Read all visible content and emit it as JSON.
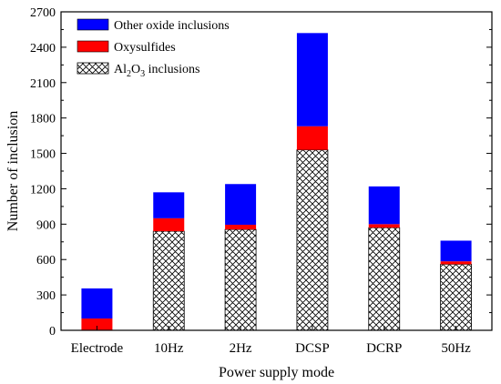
{
  "chart_data": {
    "type": "bar",
    "stacked": true,
    "categories": [
      "Electrode",
      "10Hz",
      "2Hz",
      "DCSP",
      "DCRP",
      "50Hz"
    ],
    "series": [
      {
        "name": "Al2O3 inclusions",
        "values": [
          0,
          840,
          855,
          1530,
          870,
          560
        ],
        "color": "#ffffff",
        "pattern": "crosshatch"
      },
      {
        "name": "Oxysulfides",
        "values": [
          100,
          110,
          40,
          200,
          30,
          25
        ],
        "color": "#ff0000"
      },
      {
        "name": "Other oxide inclusions",
        "values": [
          255,
          220,
          345,
          790,
          320,
          175
        ],
        "color": "#0000ff"
      }
    ],
    "legend_order": [
      "Other oxide inclusions",
      "Oxysulfides",
      "Al2O3 inclusions"
    ],
    "legend_labels": {
      "other": "Other oxide inclusions",
      "oxy": "Oxysulfides",
      "al_pre": "Al",
      "al_sub1": "2",
      "al_mid": "O",
      "al_sub2": "3",
      "al_post": " inclusions"
    },
    "xlabel": "Power supply mode",
    "ylabel": "Number of inclusion",
    "ylim": [
      0,
      2700
    ],
    "yticks": [
      0,
      300,
      600,
      900,
      1200,
      1500,
      1800,
      2100,
      2400,
      2700
    ],
    "grid": false,
    "legend_position": "top-left"
  }
}
